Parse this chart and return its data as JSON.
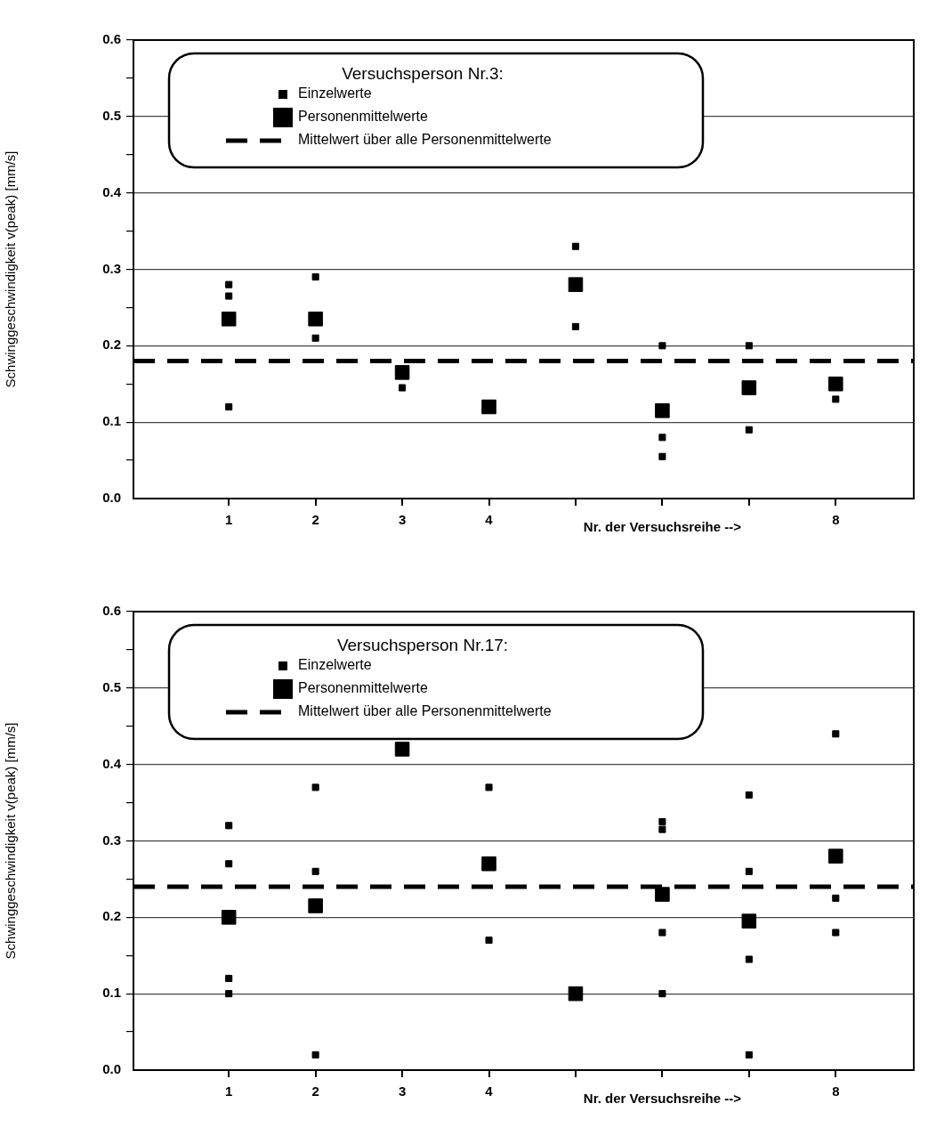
{
  "chart_data": [
    {
      "type": "scatter",
      "legend_title": "Versuchsperson Nr.3:",
      "xlabel": "Nr. der Versuchsreihe -->",
      "ylabel": "Schwinggeschwindigkeit v(peak) [mm/s]",
      "xlim": [
        -0.1,
        8.9
      ],
      "xticks": [
        1,
        2,
        3,
        4,
        {
          "value": 5,
          "label": null
        },
        {
          "value": 6,
          "label": null
        },
        {
          "value": 7,
          "label": null
        },
        8
      ],
      "ylim": [
        0,
        0.6
      ],
      "yticks": [
        {
          "value": 0,
          "label": "0.0"
        },
        {
          "value": 0.05,
          "label": null
        },
        0.1,
        {
          "value": 0.15,
          "label": null
        },
        0.2,
        {
          "value": 0.25,
          "label": null
        },
        0.3,
        {
          "value": 0.35,
          "label": null
        },
        0.4,
        {
          "value": 0.45,
          "label": null
        },
        0.5,
        {
          "value": 0.55,
          "label": null
        },
        0.6
      ],
      "grid": "y",
      "legend": "top left",
      "marker": "square",
      "series": [
        {
          "name": "Einzelwerte",
          "color": "#000000",
          "x": [
            1,
            1,
            1,
            2,
            2,
            3,
            5,
            5,
            6,
            6,
            6,
            7,
            7,
            8
          ],
          "values": [
            0.28,
            0.265,
            0.12,
            0.29,
            0.21,
            0.145,
            0.33,
            0.225,
            0.2,
            0.08,
            0.055,
            0.2,
            0.09,
            0.13
          ]
        },
        {
          "name": "Personenmittelwerte",
          "color": "#000000",
          "x": [
            1,
            2,
            3,
            4,
            5,
            6,
            7,
            8
          ],
          "values": [
            0.235,
            0.235,
            0.165,
            0.12,
            0.28,
            0.115,
            0.145,
            0.15
          ]
        }
      ],
      "ref_lines": [
        {
          "axis": "y",
          "value": 0.18,
          "label": "Mittelwert über alle Personenmittelwerte",
          "color": "#000000",
          "line_style": "dashed"
        }
      ]
    },
    {
      "type": "scatter",
      "legend_title": "Versuchsperson Nr.17:",
      "xlabel": "Nr. der Versuchsreihe -->",
      "ylabel": "Schwinggeschwindigkeit v(peak) [mm/s]",
      "xlim": [
        -0.1,
        8.9
      ],
      "xticks": [
        1,
        2,
        3,
        4,
        {
          "value": 5,
          "label": null
        },
        {
          "value": 6,
          "label": null
        },
        {
          "value": 7,
          "label": null
        },
        8
      ],
      "ylim": [
        0,
        0.6
      ],
      "yticks": [
        {
          "value": 0,
          "label": "0.0"
        },
        {
          "value": 0.05,
          "label": null
        },
        0.1,
        {
          "value": 0.15,
          "label": null
        },
        0.2,
        {
          "value": 0.25,
          "label": null
        },
        0.3,
        {
          "value": 0.35,
          "label": null
        },
        0.4,
        {
          "value": 0.45,
          "label": null
        },
        0.5,
        {
          "value": 0.55,
          "label": null
        },
        0.6
      ],
      "grid": "y",
      "legend": "top left",
      "marker": "square",
      "series": [
        {
          "name": "Einzelwerte",
          "color": "#000000",
          "x": [
            1,
            1,
            1,
            1,
            2,
            2,
            2,
            4,
            4,
            6,
            6,
            6,
            6,
            7,
            7,
            7,
            7,
            8,
            8,
            8
          ],
          "values": [
            0.32,
            0.27,
            0.12,
            0.1,
            0.37,
            0.26,
            0.02,
            0.37,
            0.17,
            0.325,
            0.315,
            0.18,
            0.1,
            0.36,
            0.26,
            0.145,
            0.02,
            0.44,
            0.225,
            0.18
          ]
        },
        {
          "name": "Personenmittelwerte",
          "color": "#000000",
          "x": [
            1,
            2,
            3,
            4,
            5,
            6,
            7,
            8
          ],
          "values": [
            0.2,
            0.215,
            0.42,
            0.27,
            0.1,
            0.23,
            0.195,
            0.28
          ]
        }
      ],
      "ref_lines": [
        {
          "axis": "y",
          "value": 0.24,
          "label": "Mittelwert über alle Personenmittelwerte",
          "color": "#000000",
          "line_style": "dashed"
        }
      ]
    }
  ]
}
